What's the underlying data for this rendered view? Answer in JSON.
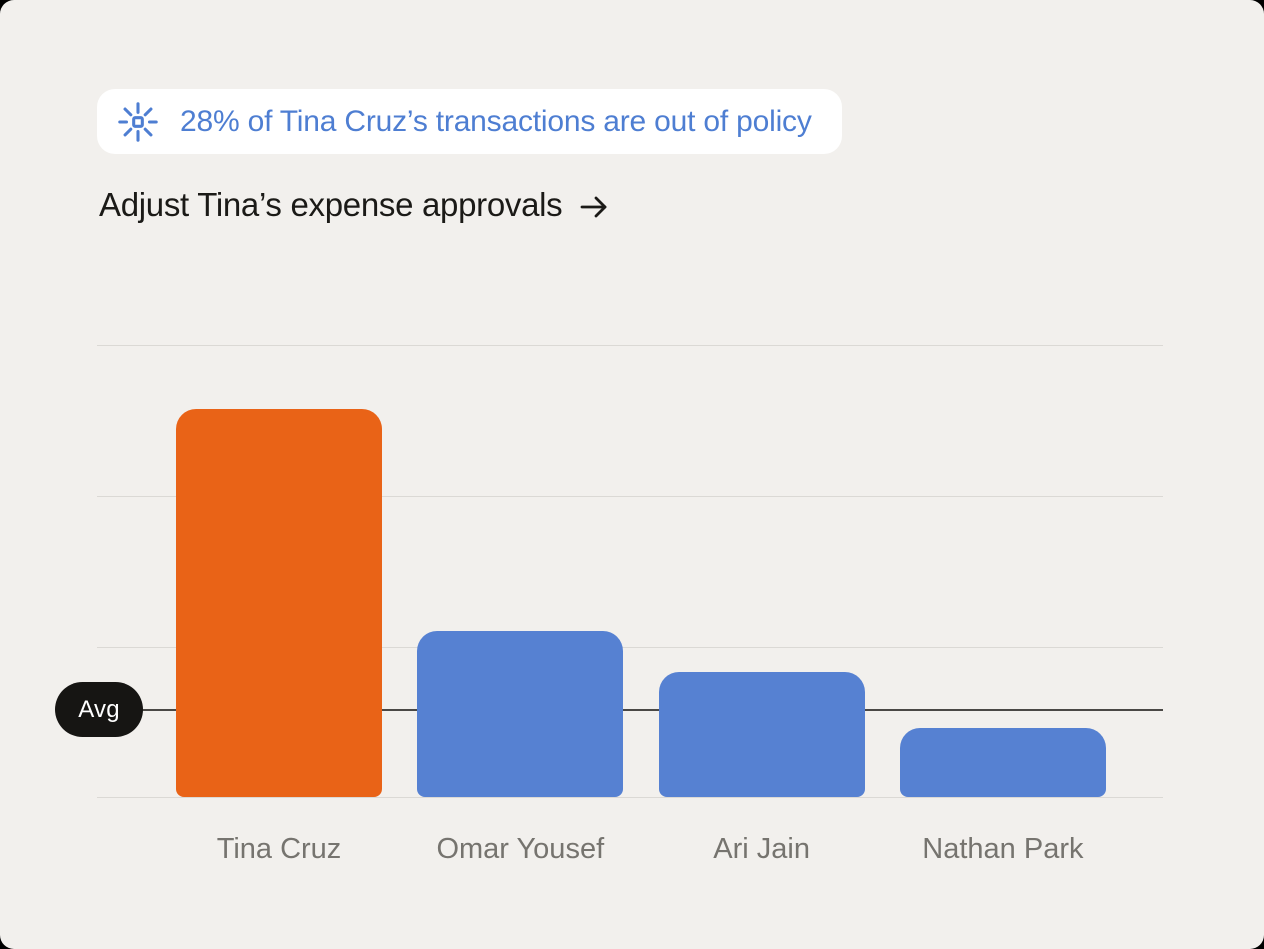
{
  "insight_banner": {
    "icon": "sparkle-burst-icon",
    "text": "28% of Tina Cruz’s transactions are out of policy"
  },
  "action_link": {
    "label": "Adjust Tina’s expense approvals",
    "arrow": "→"
  },
  "chart_data": {
    "type": "bar",
    "title": "",
    "xlabel": "",
    "ylabel": "",
    "categories": [
      "Tina Cruz",
      "Omar Yousef",
      "Ari Jain",
      "Nathan Park"
    ],
    "values": [
      28,
      12,
      9,
      5
    ],
    "value_unit": "percent of transactions out of policy (estimated from gridlines)",
    "bar_colors": [
      "#e96317",
      "#5681d2",
      "#5681d2",
      "#5681d2"
    ],
    "highlighted_category": "Tina Cruz",
    "average_line": {
      "label": "Avg",
      "value": 6.3
    },
    "ylim": [
      0,
      32.6
    ],
    "y_tick_labels_visible": false,
    "gridlines": true,
    "legend": false
  },
  "colors": {
    "page_background": "#f2f0ed",
    "banner_background": "#ffffff",
    "accent_blue": "#4e7ed2",
    "bar_highlight_orange": "#e96317",
    "bar_default_blue": "#5681d2",
    "gridline": "#dbd9d5",
    "average_line": "#4a4845",
    "avg_pill_background": "#161513",
    "heading_text": "#1b1a17",
    "axis_label_text": "#76746f"
  }
}
